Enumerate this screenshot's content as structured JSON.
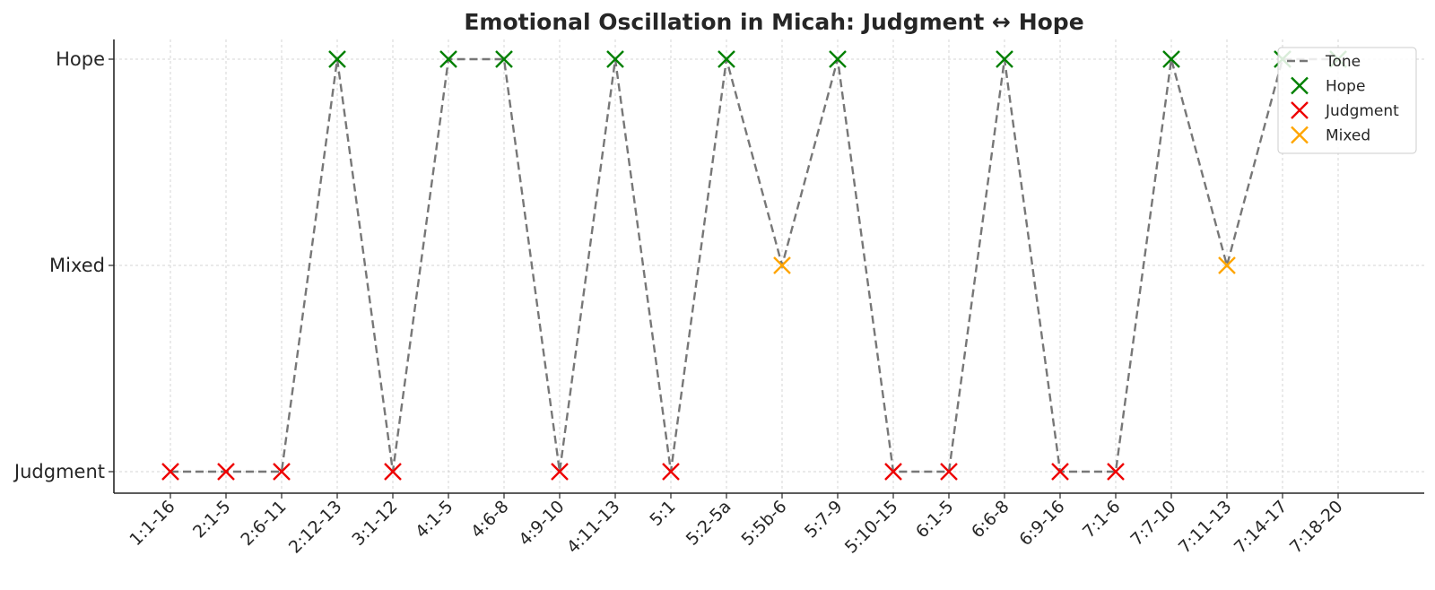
{
  "chart_data": {
    "type": "line",
    "title": "Emotional Oscillation in Micah: Judgment ↔ Hope",
    "xlabel": "",
    "ylabel": "",
    "categories": [
      "1:1-16",
      "2:1-5",
      "2:6-11",
      "2:12-13",
      "3:1-12",
      "4:1-5",
      "4:6-8",
      "4:9-10",
      "4:11-13",
      "5:1",
      "5:2-5a",
      "5:5b-6",
      "5:7-9",
      "5:10-15",
      "6:1-5",
      "6:6-8",
      "6:9-16",
      "7:1-6",
      "7:7-10",
      "7:11-13",
      "7:14-17",
      "7:18-20"
    ],
    "y_levels": [
      "Judgment",
      "Mixed",
      "Hope"
    ],
    "values": [
      "Judgment",
      "Judgment",
      "Judgment",
      "Hope",
      "Judgment",
      "Hope",
      "Hope",
      "Judgment",
      "Hope",
      "Judgment",
      "Hope",
      "Mixed",
      "Hope",
      "Judgment",
      "Judgment",
      "Hope",
      "Judgment",
      "Judgment",
      "Hope",
      "Mixed",
      "Hope",
      "Hope"
    ],
    "series": [
      {
        "name": "Tone",
        "style": "dashed-line",
        "color": "#777777"
      },
      {
        "name": "Hope",
        "marker": "x",
        "color": "#008000"
      },
      {
        "name": "Judgment",
        "marker": "x",
        "color": "#ee0000"
      },
      {
        "name": "Mixed",
        "marker": "x",
        "color": "#ffa500"
      }
    ],
    "grid": true,
    "legend_position": "top-right"
  }
}
